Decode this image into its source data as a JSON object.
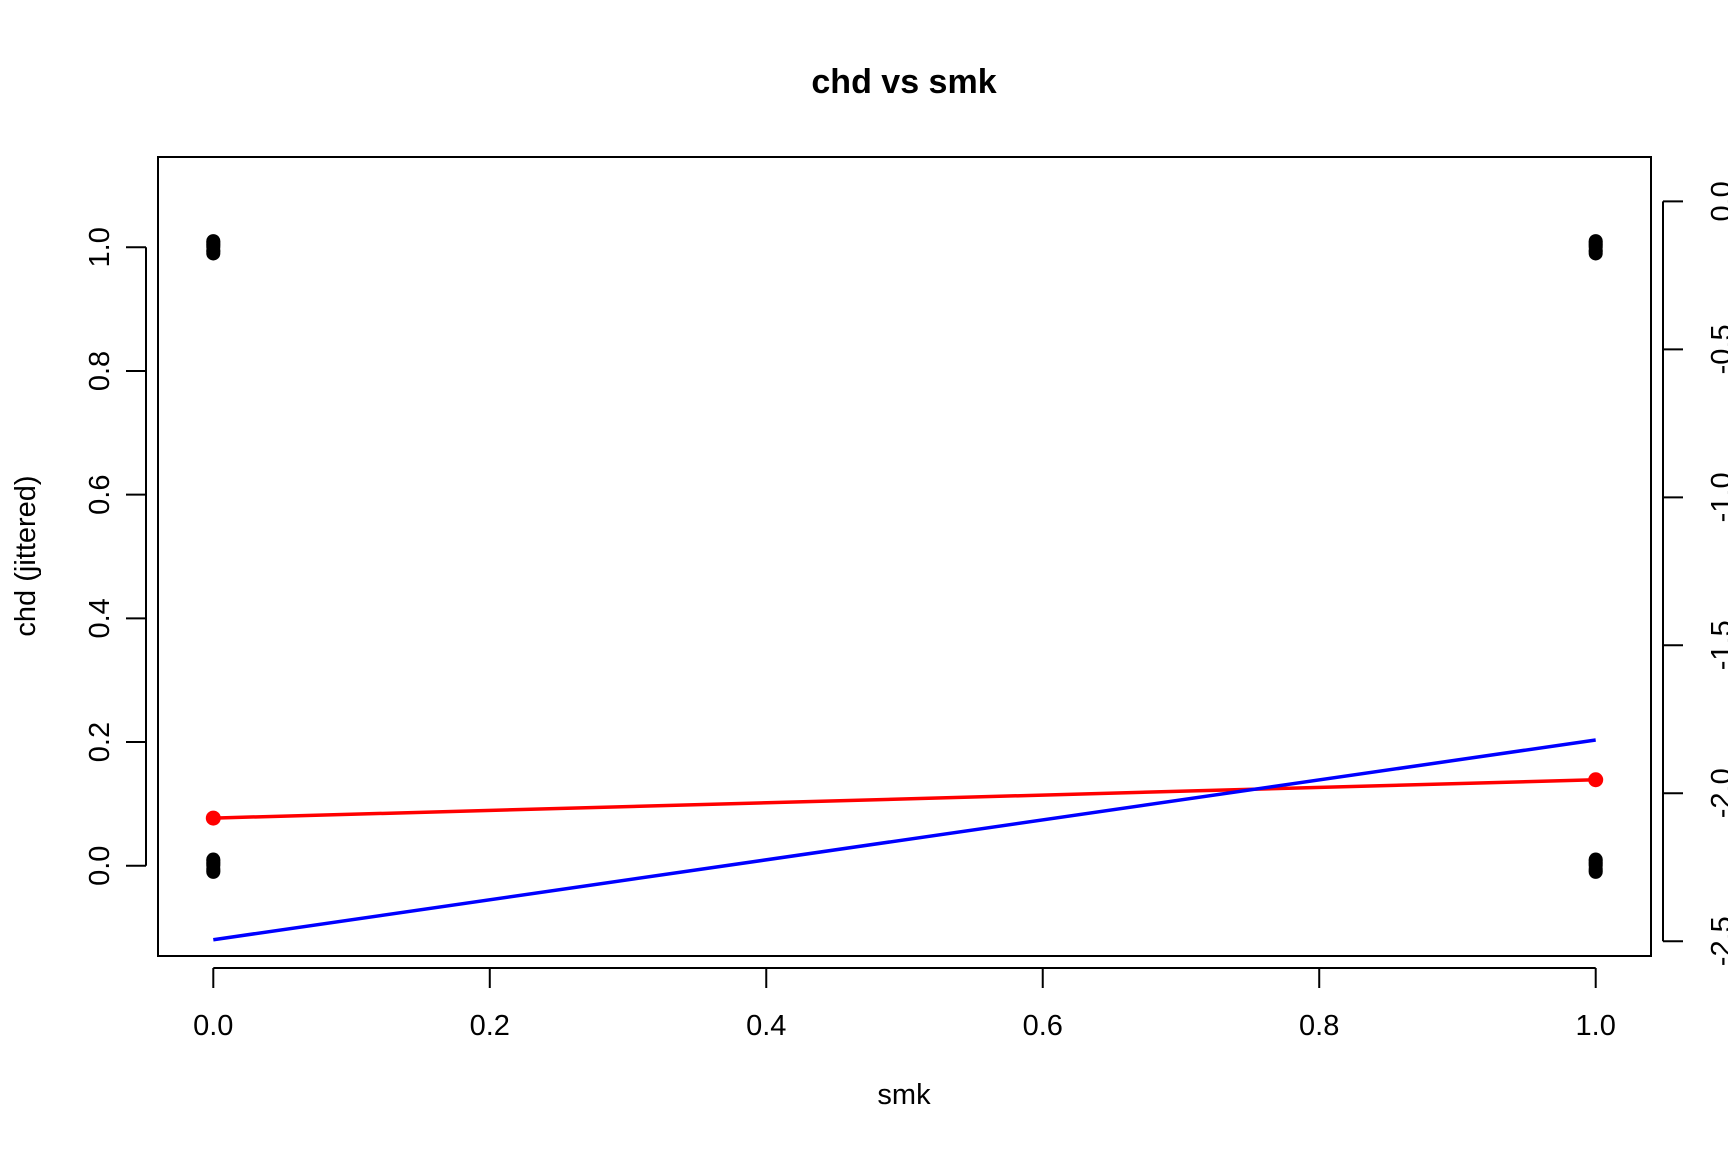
{
  "chart_data": {
    "type": "scatter",
    "title": "chd vs smk",
    "xlabel": "smk",
    "ylabel": "chd (jittered)",
    "xlim": [
      -0.04,
      1.04
    ],
    "ylim": [
      -0.146,
      1.146
    ],
    "x_ticks": [
      0.0,
      0.2,
      0.4,
      0.6,
      0.8,
      1.0
    ],
    "x_tick_labels": [
      "0.0",
      "0.2",
      "0.4",
      "0.6",
      "0.8",
      "1.0"
    ],
    "y_ticks": [
      0.0,
      0.2,
      0.4,
      0.6,
      0.8,
      1.0
    ],
    "y_tick_labels": [
      "0.0",
      "0.2",
      "0.4",
      "0.6",
      "0.8",
      "1.0"
    ],
    "y2_lim": [
      -2.55,
      0.15
    ],
    "y2_ticks": [
      -2.5,
      -2.0,
      -1.5,
      -1.0,
      -0.5,
      0.0
    ],
    "y2_tick_labels": [
      "-2.5",
      "-2.0",
      "-1.5",
      "-1.0",
      "-0.5",
      "0.0"
    ],
    "grid": false,
    "series": [
      {
        "type": "scatter",
        "color": "#000000",
        "x": [
          0,
          0,
          0,
          0,
          0,
          0,
          0,
          0,
          0,
          0,
          0,
          0,
          0,
          0,
          0,
          0,
          1,
          1,
          1,
          1,
          1,
          1,
          1,
          1,
          1,
          1,
          1,
          1,
          1,
          1,
          1,
          1
        ],
        "y": [
          -0.01,
          -0.005,
          0.0,
          0.005,
          0.01,
          -0.008,
          0.003,
          0.008,
          0.99,
          0.995,
          1.0,
          1.005,
          1.01,
          0.993,
          1.003,
          1.008,
          -0.01,
          -0.005,
          0.0,
          0.005,
          0.01,
          -0.008,
          0.003,
          0.008,
          0.99,
          0.995,
          1.0,
          1.005,
          1.01,
          0.993,
          1.003,
          1.008
        ]
      },
      {
        "type": "line-with-points",
        "color": "#ff0000",
        "axis": "left",
        "x": [
          0,
          1
        ],
        "y": [
          0.077,
          0.139
        ]
      },
      {
        "type": "line",
        "color": "#0000ff",
        "axis": "right",
        "x": [
          0,
          1
        ],
        "y": [
          -2.495,
          -1.82
        ]
      }
    ]
  }
}
